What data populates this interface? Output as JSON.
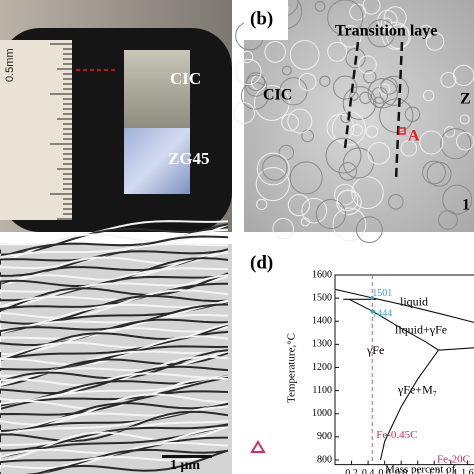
{
  "panels": {
    "a": {
      "ruler_label": "0.5mm",
      "top_label": "CIC",
      "bottom_label": "ZG45"
    },
    "b": {
      "label": "(b)",
      "title": "Transition laye",
      "left": "CIC",
      "right": "Z",
      "point": "A",
      "corner": "1"
    },
    "c": {
      "scale": "1 μm"
    }
  },
  "chart_data": {
    "type": "line",
    "label": "(d)",
    "ylabel": "Temperature,°C",
    "xlabel": "Mass percent of",
    "xlim": [
      0,
      1.68
    ],
    "xticks": [
      0.2,
      0.4,
      0.6,
      0.8,
      1.0,
      1.2,
      1.4,
      1.6
    ],
    "ylim": [
      780,
      1600
    ],
    "yticks": [
      800,
      900,
      1000,
      1100,
      1200,
      1300,
      1400,
      1500,
      1600
    ],
    "boundaries": [
      {
        "x": [
          0,
          0.45,
          0.9,
          1.3,
          1.68
        ],
        "values": [
          1538,
          1501,
          1465,
          1430,
          1395
        ]
      },
      {
        "x": [
          0.1,
          0.5
        ],
        "values": [
          1495,
          1495
        ]
      },
      {
        "x": [
          0.17,
          0.45,
          0.8,
          1.1,
          1.25
        ],
        "values": [
          1495,
          1444,
          1370,
          1310,
          1275
        ]
      },
      {
        "x": [
          1.25,
          1.68
        ],
        "values": [
          1275,
          1285
        ]
      },
      {
        "x": [
          1.25,
          1.0,
          0.8,
          0.6,
          0.55
        ],
        "values": [
          1275,
          1150,
          1030,
          880,
          800
        ]
      }
    ],
    "alloy_x": 0.45,
    "point_labels": [
      {
        "text": "1501",
        "value": 1501
      },
      {
        "text": "1444",
        "value": 1444
      }
    ],
    "regions": [
      "liquid",
      "liquid+γFe",
      "γFe",
      "γFe+M₇"
    ],
    "alloy_label": "Fe-0.45C",
    "alloy2_label": "Fe-20C"
  }
}
